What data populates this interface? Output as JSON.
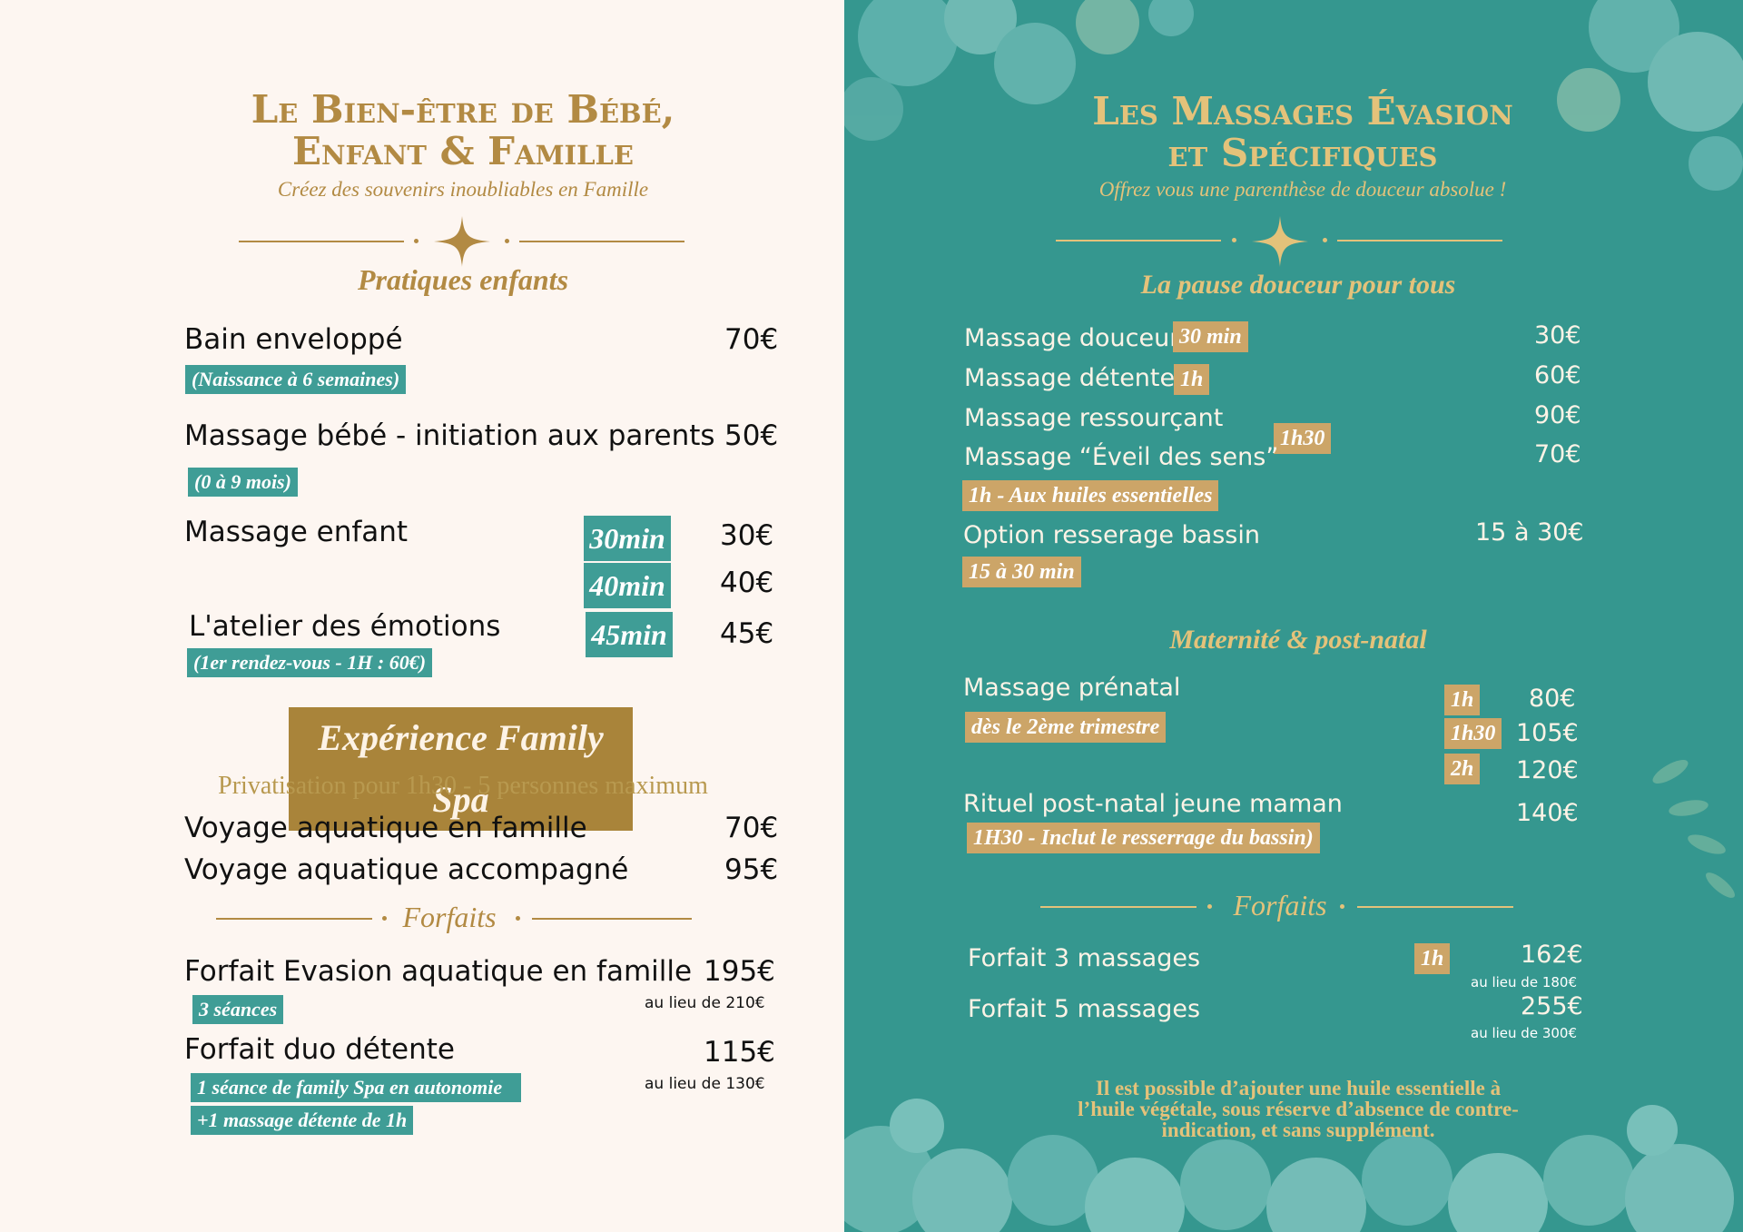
{
  "left": {
    "title_line1": "Le Bien-être de Bébé,",
    "title_line2": "Enfant & Famille",
    "subtitle": "Créez des souvenirs inoubliables en Famille",
    "section_children": "Pratiques enfants",
    "items": {
      "bain": {
        "label": "Bain enveloppé",
        "price": "70€",
        "note": "(Naissance à 6 semaines)"
      },
      "massage_bebe": {
        "label": "Massage bébé - initiation aux parents",
        "price": "50€",
        "note": "(0 à 9 mois)"
      },
      "massage_enfant": {
        "label": "Massage enfant",
        "dur1": "30min",
        "price1": "30€",
        "dur2": "40min",
        "price2": "40€"
      },
      "atelier": {
        "label": "L'atelier des émotions",
        "dur": "45min",
        "price": "45€",
        "note": "(1er rendez-vous - 1H : 60€)"
      }
    },
    "banner": "Expérience Family Spa",
    "privatisation": "Privatisation pour 1h30 - 5 personnes maximum",
    "voyage1": {
      "label": "Voyage aquatique en famille",
      "price": "70€"
    },
    "voyage2": {
      "label": "Voyage aquatique accompagné",
      "price": "95€"
    },
    "section_forfaits": "Forfaits",
    "forfait1": {
      "label": "Forfait Evasion aquatique en famille",
      "price": "195€",
      "was": "au lieu de 210€",
      "note": "3 séances"
    },
    "forfait2": {
      "label": "Forfait duo détente",
      "price": "115€",
      "was": "au lieu de 130€",
      "note1": "1 séance de family Spa en autonomie",
      "note2": "+1 massage détente de 1h"
    }
  },
  "right": {
    "title_line1": "Les Massages Évasion",
    "title_line2": "et Spécifiques",
    "subtitle": "Offrez vous une parenthèse de douceur absolue !",
    "section_pause": "La pause douceur pour tous",
    "douceur": {
      "label": "Massage douceur",
      "dur": "30 min",
      "price": "30€"
    },
    "detente": {
      "label": "Massage détente",
      "dur": "1h",
      "price": "60€"
    },
    "ressourcant": {
      "label": "Massage ressourçant",
      "dur": "1h30",
      "price": "90€"
    },
    "eveil": {
      "label": "Massage “Éveil des sens”",
      "price": "70€",
      "note": "1h - Aux huiles essentielles"
    },
    "bassin": {
      "label": "Option resserage bassin",
      "price": "15 à 30€",
      "note": "15 à 30 min"
    },
    "section_maternite": "Maternité & post-natal",
    "prenatal": {
      "label": "Massage prénatal",
      "note": "dès le 2ème trimestre",
      "d1": "1h",
      "p1": "80€",
      "d2": "1h30",
      "p2": "105€",
      "d3": "2h",
      "p3": "120€"
    },
    "postnatal": {
      "label": "Rituel post-natal jeune maman",
      "price": "140€",
      "note": "1H30 - Inclut le resserrage du bassin)"
    },
    "section_forfaits": "Forfaits",
    "f3": {
      "label": "Forfait 3 massages",
      "dur": "1h",
      "price": "162€",
      "was": "au lieu de 180€"
    },
    "f5": {
      "label": "Forfait 5 massages",
      "price": "255€",
      "was": "au lieu de 300€"
    },
    "footnote_1": "Il est possible d’ajouter une huile essentielle à",
    "footnote_2": "l’huile végétale, sous réserve d’absence de contre-",
    "footnote_3": "indication, et sans supplément."
  },
  "colors": {
    "gold": "#b28a43",
    "teal": "#35978f",
    "cream": "#fdf6f1",
    "tag_gold": "#cca568"
  }
}
